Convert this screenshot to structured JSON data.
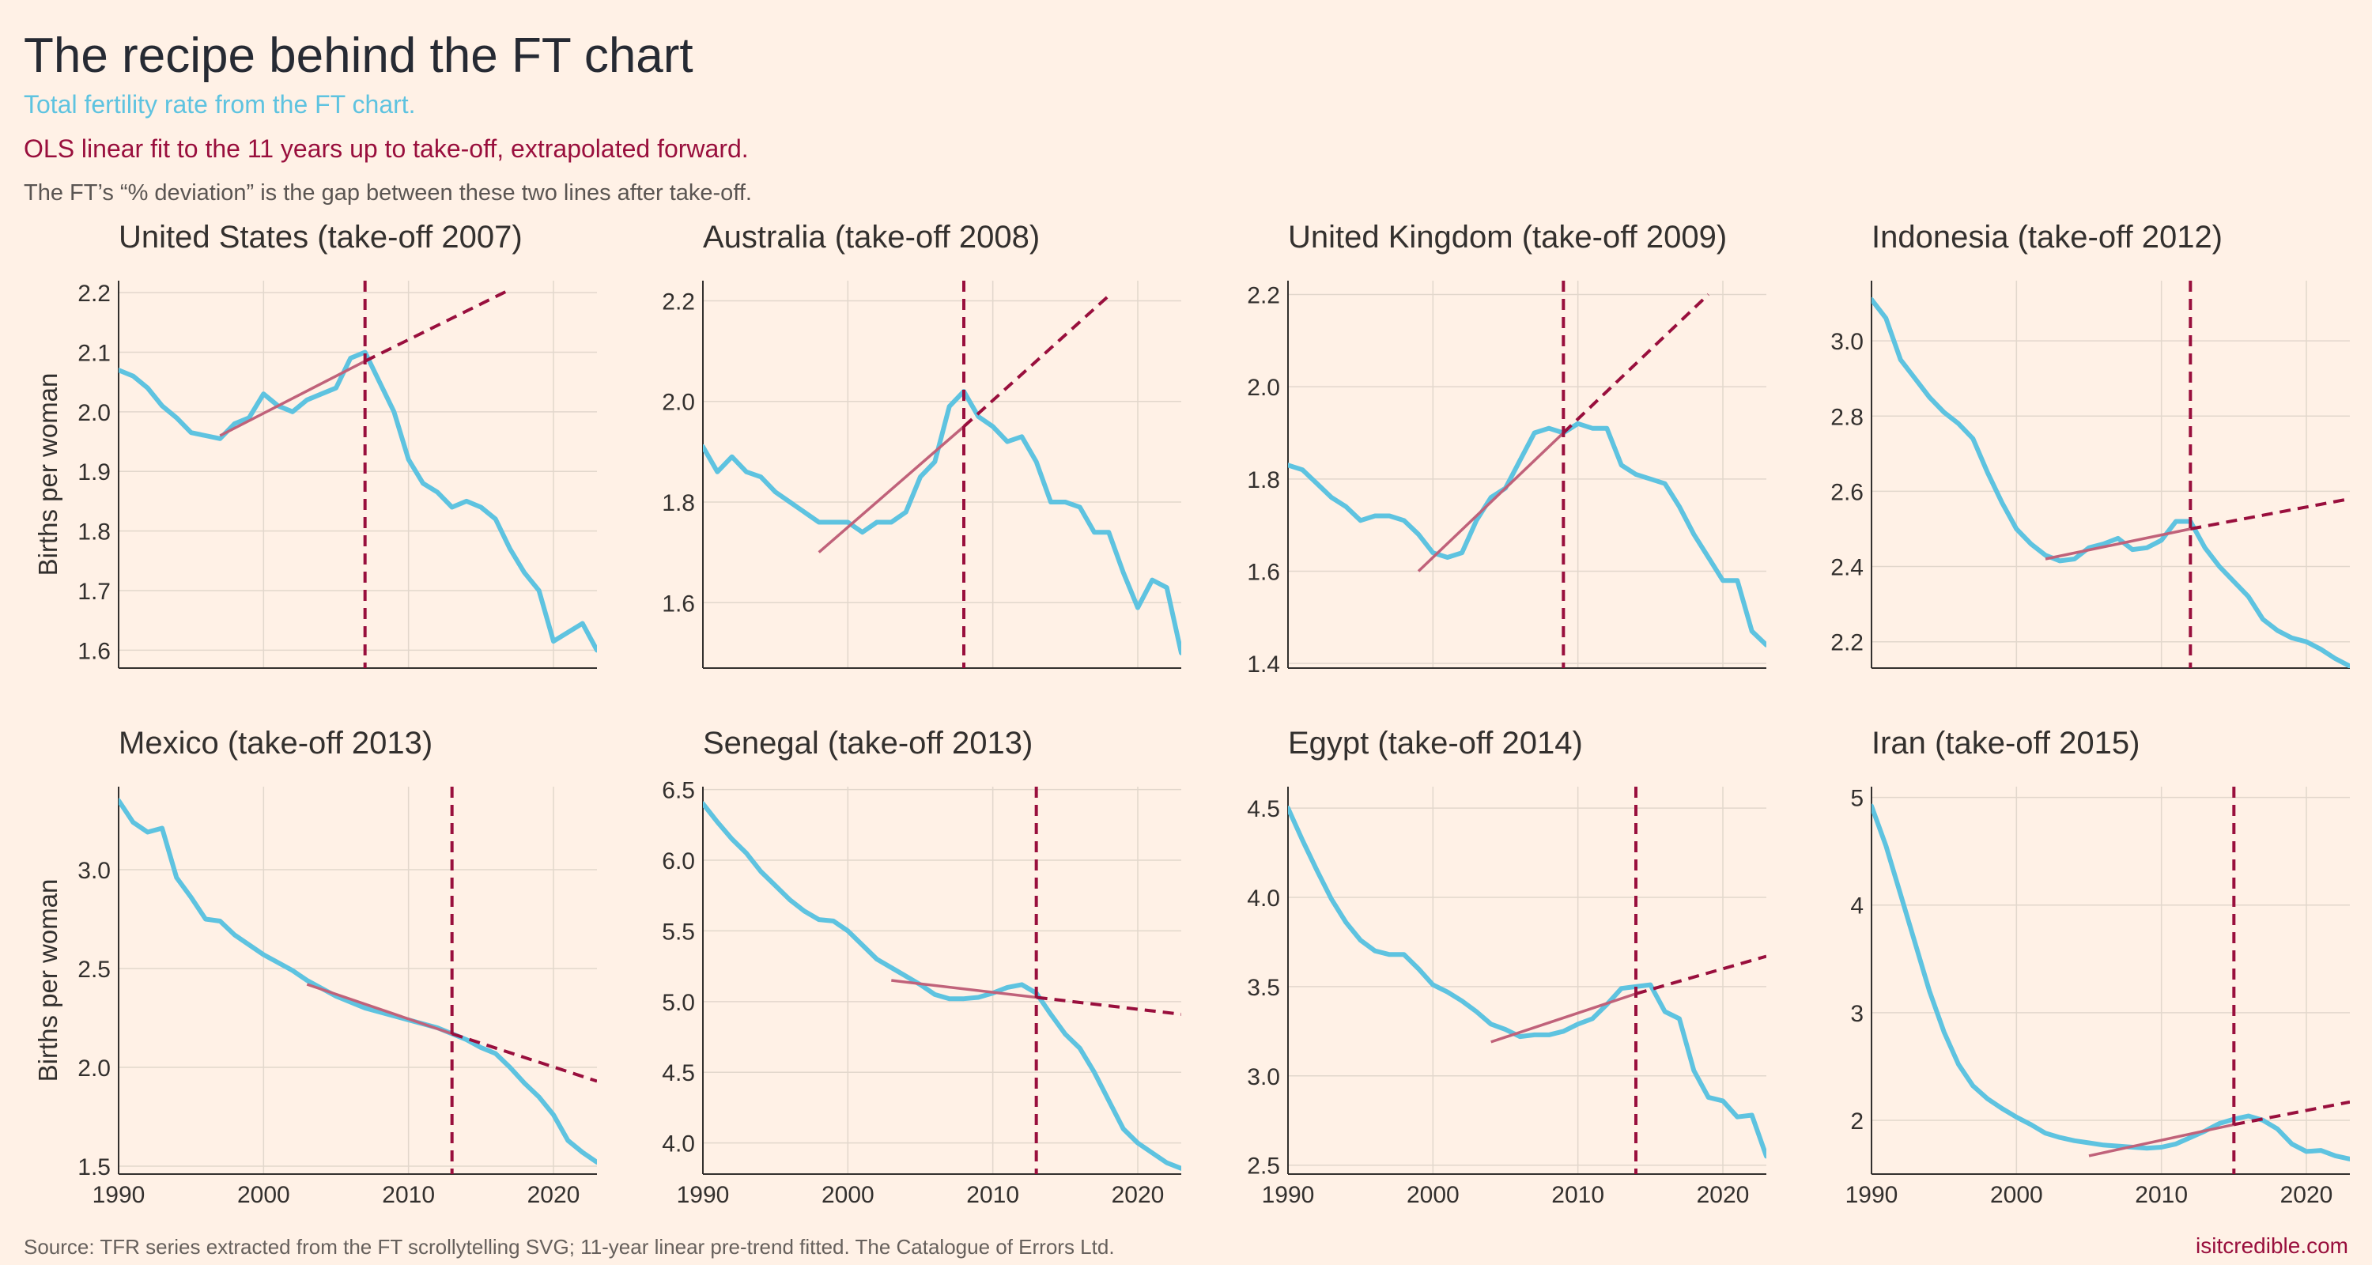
{
  "header": {
    "title": "The recipe behind the FT chart",
    "subtitle_tfr": "Total fertility rate from the FT chart.",
    "subtitle_fit": "OLS linear fit to the 11 years up to take-off, extrapolated forward.",
    "subtitle_note": "The FT’s “% deviation” is the gap between these two lines after take-off."
  },
  "footer": {
    "source": "Source: TFR series extracted from the FT scrollytelling SVG; 11-year linear pre-trend fitted. The Catalogue of Errors Ltd.",
    "brand": "isitcredible.com"
  },
  "colors": {
    "tfr": "#5ec3e0",
    "fit": "#c0627a",
    "extrapolation": "#990f3d",
    "takeoff": "#990f3d",
    "grid": "#e2d7cc",
    "axis": "#33302e",
    "text": "#33302e",
    "background": "#fff1e6"
  },
  "chart_data": [
    {
      "type": "line",
      "title": "United States (take-off 2007)",
      "ylabel": "Births per woman",
      "xlim": [
        1990,
        2023
      ],
      "ylim": [
        1.57,
        2.22
      ],
      "xticks": [
        1990,
        2000,
        2010,
        2020
      ],
      "yticks": [
        1.6,
        1.7,
        1.8,
        1.9,
        2.0,
        2.1,
        2.2
      ],
      "takeoff": 2007,
      "series": [
        {
          "role": "tfr",
          "x": [
            1990,
            1991,
            1992,
            1993,
            1994,
            1995,
            1996,
            1997,
            1998,
            1999,
            2000,
            2001,
            2002,
            2003,
            2004,
            2005,
            2006,
            2007,
            2008,
            2009,
            2010,
            2011,
            2012,
            2013,
            2014,
            2015,
            2016,
            2017,
            2018,
            2019,
            2020,
            2021,
            2022,
            2023
          ],
          "y": [
            2.07,
            2.06,
            2.04,
            2.01,
            1.99,
            1.965,
            1.96,
            1.955,
            1.98,
            1.99,
            2.03,
            2.01,
            2.0,
            2.02,
            2.03,
            2.04,
            2.09,
            2.1,
            2.05,
            2.0,
            1.92,
            1.88,
            1.865,
            1.84,
            1.85,
            1.84,
            1.82,
            1.77,
            1.73,
            1.7,
            1.615,
            1.63,
            1.645,
            1.6
          ]
        },
        {
          "role": "fit",
          "x": [
            1997,
            2007
          ],
          "y": [
            1.96,
            2.085
          ]
        },
        {
          "role": "extrapolation",
          "x": [
            2007,
            2017
          ],
          "y": [
            2.085,
            2.205
          ]
        }
      ]
    },
    {
      "type": "line",
      "title": "Australia (take-off 2008)",
      "xlim": [
        1990,
        2023
      ],
      "ylim": [
        1.47,
        2.24
      ],
      "xticks": [
        1990,
        2000,
        2010,
        2020
      ],
      "yticks": [
        1.6,
        1.8,
        2.0,
        2.2
      ],
      "takeoff": 2008,
      "series": [
        {
          "role": "tfr",
          "x": [
            1990,
            1991,
            1992,
            1993,
            1994,
            1995,
            1996,
            1997,
            1998,
            1999,
            2000,
            2001,
            2002,
            2003,
            2004,
            2005,
            2006,
            2007,
            2008,
            2009,
            2010,
            2011,
            2012,
            2013,
            2014,
            2015,
            2016,
            2017,
            2018,
            2019,
            2020,
            2021,
            2022,
            2023
          ],
          "y": [
            1.91,
            1.86,
            1.89,
            1.86,
            1.85,
            1.82,
            1.8,
            1.78,
            1.76,
            1.76,
            1.76,
            1.74,
            1.76,
            1.76,
            1.78,
            1.85,
            1.88,
            1.99,
            2.02,
            1.97,
            1.95,
            1.92,
            1.93,
            1.88,
            1.8,
            1.8,
            1.79,
            1.74,
            1.74,
            1.66,
            1.59,
            1.645,
            1.63,
            1.5
          ]
        },
        {
          "role": "fit",
          "x": [
            1998,
            2008
          ],
          "y": [
            1.7,
            1.95
          ]
        },
        {
          "role": "extrapolation",
          "x": [
            2008,
            2018
          ],
          "y": [
            1.95,
            2.21
          ]
        }
      ]
    },
    {
      "type": "line",
      "title": "United Kingdom (take-off 2009)",
      "xlim": [
        1990,
        2023
      ],
      "ylim": [
        1.39,
        2.23
      ],
      "xticks": [
        1990,
        2000,
        2010,
        2020
      ],
      "yticks": [
        1.4,
        1.6,
        1.8,
        2.0,
        2.2
      ],
      "takeoff": 2009,
      "series": [
        {
          "role": "tfr",
          "x": [
            1990,
            1991,
            1992,
            1993,
            1994,
            1995,
            1996,
            1997,
            1998,
            1999,
            2000,
            2001,
            2002,
            2003,
            2004,
            2005,
            2006,
            2007,
            2008,
            2009,
            2010,
            2011,
            2012,
            2013,
            2014,
            2015,
            2016,
            2017,
            2018,
            2019,
            2020,
            2021,
            2022,
            2023
          ],
          "y": [
            1.83,
            1.82,
            1.79,
            1.76,
            1.74,
            1.71,
            1.72,
            1.72,
            1.71,
            1.68,
            1.64,
            1.63,
            1.64,
            1.71,
            1.76,
            1.78,
            1.84,
            1.9,
            1.91,
            1.9,
            1.92,
            1.91,
            1.91,
            1.83,
            1.81,
            1.8,
            1.79,
            1.74,
            1.68,
            1.63,
            1.58,
            1.58,
            1.47,
            1.44
          ]
        },
        {
          "role": "fit",
          "x": [
            1999,
            2009
          ],
          "y": [
            1.6,
            1.9
          ]
        },
        {
          "role": "extrapolation",
          "x": [
            2009,
            2019
          ],
          "y": [
            1.9,
            2.2
          ]
        }
      ]
    },
    {
      "type": "line",
      "title": "Indonesia (take-off 2012)",
      "xlim": [
        1990,
        2023
      ],
      "ylim": [
        2.13,
        3.16
      ],
      "xticks": [
        1990,
        2000,
        2010,
        2020
      ],
      "yticks": [
        2.2,
        2.4,
        2.6,
        2.8,
        3.0
      ],
      "takeoff": 2012,
      "series": [
        {
          "role": "tfr",
          "x": [
            1990,
            1991,
            1992,
            1993,
            1994,
            1995,
            1996,
            1997,
            1998,
            1999,
            2000,
            2001,
            2002,
            2003,
            2004,
            2005,
            2006,
            2007,
            2008,
            2009,
            2010,
            2011,
            2012,
            2013,
            2014,
            2015,
            2016,
            2017,
            2018,
            2019,
            2020,
            2021,
            2022,
            2023
          ],
          "y": [
            3.11,
            3.06,
            2.95,
            2.9,
            2.85,
            2.81,
            2.78,
            2.74,
            2.65,
            2.57,
            2.5,
            2.46,
            2.43,
            2.415,
            2.42,
            2.45,
            2.46,
            2.475,
            2.445,
            2.45,
            2.47,
            2.52,
            2.52,
            2.45,
            2.4,
            2.36,
            2.32,
            2.26,
            2.23,
            2.21,
            2.2,
            2.18,
            2.155,
            2.135
          ]
        },
        {
          "role": "fit",
          "x": [
            2002,
            2012
          ],
          "y": [
            2.42,
            2.5
          ]
        },
        {
          "role": "extrapolation",
          "x": [
            2012,
            2023
          ],
          "y": [
            2.5,
            2.58
          ]
        }
      ]
    },
    {
      "type": "line",
      "title": "Mexico (take-off 2013)",
      "ylabel": "Births per woman",
      "xlim": [
        1990,
        2023
      ],
      "ylim": [
        1.46,
        3.42
      ],
      "xticks": [
        1990,
        2000,
        2010,
        2020
      ],
      "yticks": [
        1.5,
        2.0,
        2.5,
        3.0
      ],
      "takeoff": 2013,
      "series": [
        {
          "role": "tfr",
          "x": [
            1990,
            1991,
            1992,
            1993,
            1994,
            1995,
            1996,
            1997,
            1998,
            1999,
            2000,
            2001,
            2002,
            2003,
            2004,
            2005,
            2006,
            2007,
            2008,
            2009,
            2010,
            2011,
            2012,
            2013,
            2014,
            2015,
            2016,
            2017,
            2018,
            2019,
            2020,
            2021,
            2022,
            2023
          ],
          "y": [
            3.35,
            3.24,
            3.19,
            3.21,
            2.96,
            2.86,
            2.75,
            2.74,
            2.67,
            2.62,
            2.57,
            2.53,
            2.49,
            2.44,
            2.4,
            2.36,
            2.33,
            2.3,
            2.28,
            2.26,
            2.24,
            2.22,
            2.2,
            2.17,
            2.14,
            2.1,
            2.07,
            2.0,
            1.92,
            1.85,
            1.76,
            1.63,
            1.57,
            1.52
          ]
        },
        {
          "role": "fit",
          "x": [
            2003,
            2013
          ],
          "y": [
            2.42,
            2.17
          ]
        },
        {
          "role": "extrapolation",
          "x": [
            2013,
            2023
          ],
          "y": [
            2.17,
            1.93
          ]
        }
      ]
    },
    {
      "type": "line",
      "title": "Senegal (take-off 2013)",
      "xlim": [
        1990,
        2023
      ],
      "ylim": [
        3.78,
        6.52
      ],
      "xticks": [
        1990,
        2000,
        2010,
        2020
      ],
      "yticks": [
        4.0,
        4.5,
        5.0,
        5.5,
        6.0,
        6.5
      ],
      "takeoff": 2013,
      "series": [
        {
          "role": "tfr",
          "x": [
            1990,
            1991,
            1992,
            1993,
            1994,
            1995,
            1996,
            1997,
            1998,
            1999,
            2000,
            2001,
            2002,
            2003,
            2004,
            2005,
            2006,
            2007,
            2008,
            2009,
            2010,
            2011,
            2012,
            2013,
            2014,
            2015,
            2016,
            2017,
            2018,
            2019,
            2020,
            2021,
            2022,
            2023
          ],
          "y": [
            6.4,
            6.27,
            6.15,
            6.05,
            5.92,
            5.82,
            5.72,
            5.64,
            5.58,
            5.57,
            5.5,
            5.4,
            5.3,
            5.24,
            5.18,
            5.12,
            5.05,
            5.02,
            5.02,
            5.03,
            5.06,
            5.1,
            5.12,
            5.06,
            4.91,
            4.77,
            4.67,
            4.5,
            4.3,
            4.1,
            4.0,
            3.93,
            3.86,
            3.82
          ]
        },
        {
          "role": "fit",
          "x": [
            2003,
            2013
          ],
          "y": [
            5.15,
            5.03
          ]
        },
        {
          "role": "extrapolation",
          "x": [
            2013,
            2023
          ],
          "y": [
            5.03,
            4.91
          ]
        }
      ]
    },
    {
      "type": "line",
      "title": "Egypt (take-off 2014)",
      "xlim": [
        1990,
        2023
      ],
      "ylim": [
        2.45,
        4.62
      ],
      "xticks": [
        1990,
        2000,
        2010,
        2020
      ],
      "yticks": [
        2.5,
        3.0,
        3.5,
        4.0,
        4.5
      ],
      "takeoff": 2014,
      "series": [
        {
          "role": "tfr",
          "x": [
            1990,
            1991,
            1992,
            1993,
            1994,
            1995,
            1996,
            1997,
            1998,
            1999,
            2000,
            2001,
            2002,
            2003,
            2004,
            2005,
            2006,
            2007,
            2008,
            2009,
            2010,
            2011,
            2012,
            2013,
            2014,
            2015,
            2016,
            2017,
            2018,
            2019,
            2020,
            2021,
            2022,
            2023
          ],
          "y": [
            4.5,
            4.32,
            4.15,
            3.99,
            3.86,
            3.76,
            3.7,
            3.68,
            3.68,
            3.6,
            3.51,
            3.47,
            3.42,
            3.36,
            3.29,
            3.26,
            3.22,
            3.23,
            3.23,
            3.25,
            3.29,
            3.32,
            3.4,
            3.49,
            3.5,
            3.51,
            3.36,
            3.32,
            3.03,
            2.88,
            2.86,
            2.77,
            2.78,
            2.55
          ]
        },
        {
          "role": "fit",
          "x": [
            2004,
            2014
          ],
          "y": [
            3.19,
            3.46
          ]
        },
        {
          "role": "extrapolation",
          "x": [
            2014,
            2023
          ],
          "y": [
            3.46,
            3.67
          ]
        }
      ]
    },
    {
      "type": "line",
      "title": "Iran (take-off 2015)",
      "xlim": [
        1990,
        2023
      ],
      "ylim": [
        1.5,
        5.1
      ],
      "xticks": [
        1990,
        2000,
        2010,
        2020
      ],
      "yticks": [
        2,
        3,
        4,
        5
      ],
      "takeoff": 2015,
      "series": [
        {
          "role": "tfr",
          "x": [
            1990,
            1991,
            1992,
            1993,
            1994,
            1995,
            1996,
            1997,
            1998,
            1999,
            2000,
            2001,
            2002,
            2003,
            2004,
            2005,
            2006,
            2007,
            2008,
            2009,
            2010,
            2011,
            2012,
            2013,
            2014,
            2015,
            2016,
            2017,
            2018,
            2019,
            2020,
            2021,
            2022,
            2023
          ],
          "y": [
            4.92,
            4.55,
            4.1,
            3.65,
            3.2,
            2.82,
            2.52,
            2.32,
            2.2,
            2.11,
            2.03,
            1.96,
            1.88,
            1.84,
            1.81,
            1.79,
            1.77,
            1.76,
            1.75,
            1.74,
            1.75,
            1.78,
            1.84,
            1.9,
            1.97,
            2.01,
            2.04,
            2.0,
            1.92,
            1.78,
            1.71,
            1.72,
            1.67,
            1.64
          ]
        },
        {
          "role": "fit",
          "x": [
            2005,
            2015
          ],
          "y": [
            1.67,
            1.96
          ]
        },
        {
          "role": "extrapolation",
          "x": [
            2015,
            2023
          ],
          "y": [
            1.96,
            2.17
          ]
        }
      ]
    }
  ]
}
